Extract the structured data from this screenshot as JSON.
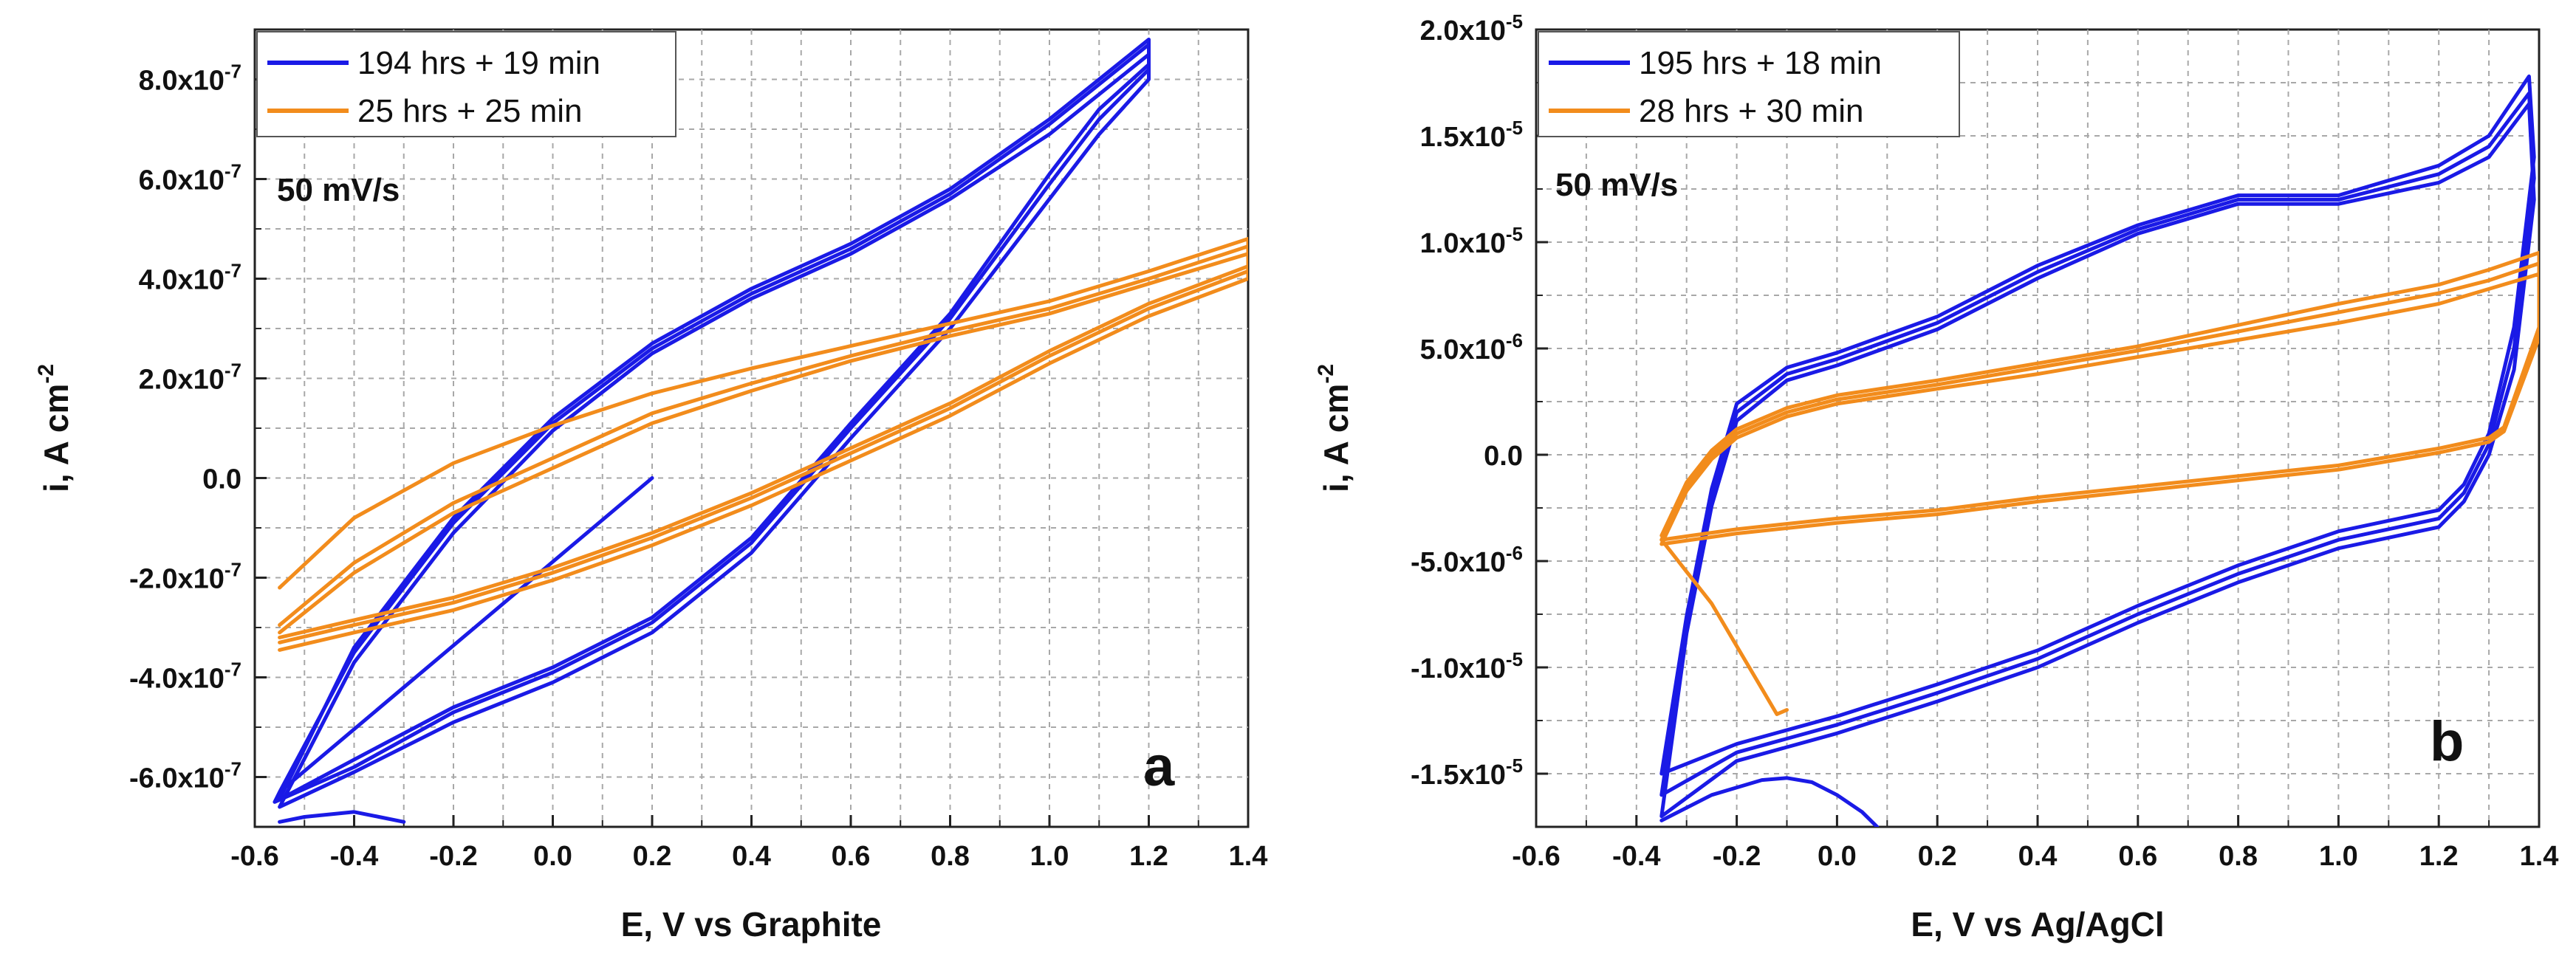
{
  "chart_data": [
    {
      "type": "line",
      "panel_label": "a",
      "annotation": "50 mV/s",
      "xlabel": "E, V vs Graphite",
      "ylabel": "i, A cm-2",
      "ylabel_main": "i, A cm",
      "ylabel_sup": "-2",
      "xlim": [
        -0.6,
        1.4
      ],
      "ylim": [
        -7e-07,
        9e-07
      ],
      "grid": true,
      "legend_position": "top-left",
      "x_ticks": [
        -0.6,
        -0.4,
        -0.2,
        0.0,
        0.2,
        0.4,
        0.6,
        0.8,
        1.0,
        1.2,
        1.4
      ],
      "x_tick_labels": [
        "-0.6",
        "-0.4",
        "-0.2",
        "0.0",
        "0.2",
        "0.4",
        "0.6",
        "0.8",
        "1.0",
        "1.2",
        "1.4"
      ],
      "y_ticks": [
        -6e-07,
        -4e-07,
        -2e-07,
        0.0,
        2e-07,
        4e-07,
        6e-07,
        8e-07
      ],
      "y_tick_labels": [
        {
          "base": "-6.0x10",
          "exp": "-7",
          "plain": ""
        },
        {
          "base": "-4.0x10",
          "exp": "-7",
          "plain": ""
        },
        {
          "base": "-2.0x10",
          "exp": "-7",
          "plain": ""
        },
        {
          "base": "",
          "exp": "",
          "plain": "0.0"
        },
        {
          "base": "2.0x10",
          "exp": "-7",
          "plain": ""
        },
        {
          "base": "4.0x10",
          "exp": "-7",
          "plain": ""
        },
        {
          "base": "6.0x10",
          "exp": "-7",
          "plain": ""
        },
        {
          "base": "8.0x10",
          "exp": "-7",
          "plain": ""
        }
      ],
      "series": [
        {
          "name": "194 hrs + 19 min",
          "color": "#1a1ae6",
          "cycles": [
            {
              "x": [
                0.2,
                -0.55,
                -0.56,
                -0.4,
                -0.2,
                0.0,
                0.2,
                0.4,
                0.6,
                0.8,
                1.0,
                1.1,
                1.2,
                1.2,
                1.0,
                0.8,
                0.6,
                0.4,
                0.2,
                0.0,
                -0.2,
                -0.4,
                -0.55
              ],
              "y": [
                0.0,
                -6.3e-07,
                -6.5e-07,
                -5.8e-07,
                -4.7e-07,
                -3.9e-07,
                -2.9e-07,
                -1.3e-07,
                1e-07,
                3.2e-07,
                5.9e-07,
                7.2e-07,
                8.2e-07,
                8.7e-07,
                7.1e-07,
                5.7e-07,
                4.6e-07,
                3.7e-07,
                2.6e-07,
                1.1e-07,
                -9e-08,
                -3.5e-07,
                -6.3e-07
              ]
            },
            {
              "x": [
                -0.55,
                -0.4,
                -0.2,
                0.0,
                0.2,
                0.4,
                0.6,
                0.8,
                1.0,
                1.1,
                1.2,
                1.2,
                1.0,
                0.8,
                0.6,
                0.4,
                0.2,
                0.0,
                -0.2,
                -0.4,
                -0.55
              ],
              "y": [
                -6.6e-07,
                -5.9e-07,
                -4.9e-07,
                -4.1e-07,
                -3.1e-07,
                -1.5e-07,
                8e-08,
                3e-07,
                5.6e-07,
                6.9e-07,
                8e-07,
                8.5e-07,
                6.9e-07,
                5.6e-07,
                4.5e-07,
                3.6e-07,
                2.5e-07,
                9.5e-08,
                -1.1e-07,
                -3.7e-07,
                -6.6e-07
              ]
            },
            {
              "x": [
                -0.55,
                -0.4,
                -0.2,
                0.0,
                0.2,
                0.4,
                0.6,
                0.8,
                1.0,
                1.1,
                1.2,
                1.2,
                1.0,
                0.8,
                0.6,
                0.4,
                0.2,
                0.0,
                -0.2,
                -0.4,
                -0.55
              ],
              "y": [
                -6.45e-07,
                -5.65e-07,
                -4.6e-07,
                -3.8e-07,
                -2.8e-07,
                -1.2e-07,
                1.1e-07,
                3.3e-07,
                6.1e-07,
                7.4e-07,
                8.3e-07,
                8.8e-07,
                7.2e-07,
                5.8e-07,
                4.7e-07,
                3.8e-07,
                2.7e-07,
                1.2e-07,
                -8e-08,
                -3.4e-07,
                -6.45e-07
              ]
            },
            {
              "x": [
                -0.55,
                -0.5,
                -0.45,
                -0.4,
                -0.35,
                -0.3
              ],
              "y": [
                -6.9e-07,
                -6.8e-07,
                -6.75e-07,
                -6.7e-07,
                -6.8e-07,
                -6.9e-07
              ]
            }
          ]
        },
        {
          "name": "25 hrs + 25 min",
          "color": "#f28c1c",
          "cycles": [
            {
              "x": [
                -0.55,
                -0.4,
                -0.2,
                0.0,
                0.2,
                0.4,
                0.6,
                0.8,
                1.0,
                1.2,
                1.4,
                1.4,
                1.2,
                1.0,
                0.8,
                0.6,
                0.4,
                0.2,
                0.0,
                -0.2,
                -0.4,
                -0.55
              ],
              "y": [
                -3.3e-07,
                -2.95e-07,
                -2.5e-07,
                -1.9e-07,
                -1.2e-07,
                -4e-08,
                5e-08,
                1.4e-07,
                2.45e-07,
                3.4e-07,
                4.15e-07,
                4.8e-07,
                4.15e-07,
                3.55e-07,
                3.1e-07,
                2.65e-07,
                2.2e-07,
                1.7e-07,
                1.05e-07,
                3e-08,
                -8e-08,
                -2.2e-07
              ]
            },
            {
              "x": [
                -0.55,
                -0.4,
                -0.2,
                0.0,
                0.2,
                0.4,
                0.6,
                0.8,
                1.0,
                1.2,
                1.4,
                1.4,
                1.2,
                1.0,
                0.8,
                0.6,
                0.4,
                0.2,
                0.0,
                -0.2,
                -0.4,
                -0.55
              ],
              "y": [
                -3.45e-07,
                -3.1e-07,
                -2.65e-07,
                -2.05e-07,
                -1.35e-07,
                -5.5e-08,
                3.5e-08,
                1.25e-07,
                2.3e-07,
                3.25e-07,
                4e-07,
                4.5e-07,
                3.9e-07,
                3.3e-07,
                2.85e-07,
                2.35e-07,
                1.75e-07,
                1.1e-07,
                2e-08,
                -7e-08,
                -1.9e-07,
                -3.1e-07
              ]
            },
            {
              "x": [
                -0.55,
                -0.4,
                -0.2,
                0.0,
                0.2,
                0.4,
                0.6,
                0.8,
                1.0,
                1.2,
                1.4,
                1.4,
                1.2,
                1.0,
                0.8,
                0.6,
                0.4,
                0.2,
                0.0,
                -0.2,
                -0.4,
                -0.55
              ],
              "y": [
                -3.2e-07,
                -2.85e-07,
                -2.4e-07,
                -1.8e-07,
                -1.1e-07,
                -3e-08,
                6e-08,
                1.5e-07,
                2.55e-07,
                3.5e-07,
                4.25e-07,
                4.65e-07,
                4e-07,
                3.4e-07,
                2.95e-07,
                2.45e-07,
                1.9e-07,
                1.3e-07,
                4e-08,
                -5e-08,
                -1.7e-07,
                -2.95e-07
              ]
            }
          ]
        }
      ]
    },
    {
      "type": "line",
      "panel_label": "b",
      "annotation": "50 mV/s",
      "xlabel": "E, V vs Ag/AgCl",
      "ylabel": "i, A cm-2",
      "ylabel_main": "i, A cm",
      "ylabel_sup": "-2",
      "xlim": [
        -0.6,
        1.4
      ],
      "ylim": [
        -1.75e-05,
        2e-05
      ],
      "grid": true,
      "legend_position": "top-left",
      "x_ticks": [
        -0.6,
        -0.4,
        -0.2,
        0.0,
        0.2,
        0.4,
        0.6,
        0.8,
        1.0,
        1.2,
        1.4
      ],
      "x_tick_labels": [
        "-0.6",
        "-0.4",
        "-0.2",
        "0.0",
        "0.2",
        "0.4",
        "0.6",
        "0.8",
        "1.0",
        "1.2",
        "1.4"
      ],
      "y_ticks": [
        -1.5e-05,
        -1e-05,
        -5e-06,
        0.0,
        5e-06,
        1e-05,
        1.5e-05,
        2e-05
      ],
      "y_tick_labels": [
        {
          "base": "-1.5x10",
          "exp": "-5",
          "plain": ""
        },
        {
          "base": "-1.0x10",
          "exp": "-5",
          "plain": ""
        },
        {
          "base": "-5.0x10",
          "exp": "-6",
          "plain": ""
        },
        {
          "base": "",
          "exp": "",
          "plain": "0.0"
        },
        {
          "base": "5.0x10",
          "exp": "-6",
          "plain": ""
        },
        {
          "base": "1.0x10",
          "exp": "-5",
          "plain": ""
        },
        {
          "base": "1.5x10",
          "exp": "-5",
          "plain": ""
        },
        {
          "base": "2.0x10",
          "exp": "-5",
          "plain": ""
        }
      ],
      "series": [
        {
          "name": "195 hrs + 18 min",
          "color": "#1a1ae6",
          "cycles": [
            {
              "x": [
                -0.35,
                -0.3,
                -0.25,
                -0.2,
                -0.1,
                0.0,
                0.2,
                0.4,
                0.6,
                0.8,
                1.0,
                1.2,
                1.3,
                1.38,
                1.39,
                1.35,
                1.3,
                1.25,
                1.2,
                1.1,
                1.0,
                0.8,
                0.6,
                0.4,
                0.2,
                0.0,
                -0.2,
                -0.35
              ],
              "y": [
                -1.6e-05,
                -8e-06,
                -2e-06,
                2e-06,
                3.8e-06,
                4.5e-06,
                6.2e-06,
                8.6e-06,
                1.06e-05,
                1.2e-05,
                1.2e-05,
                1.32e-05,
                1.45e-05,
                1.7e-05,
                1.3e-05,
                5e-06,
                5e-07,
                -1.8e-06,
                -3e-06,
                -3.5e-06,
                -4e-06,
                -5.6e-06,
                -7.5e-06,
                -9.6e-06,
                -1.12e-05,
                -1.27e-05,
                -1.4e-05,
                -1.6e-05
              ]
            },
            {
              "x": [
                -0.35,
                -0.3,
                -0.25,
                -0.2,
                -0.1,
                0.0,
                0.2,
                0.4,
                0.6,
                0.8,
                1.0,
                1.2,
                1.3,
                1.38,
                1.39,
                1.35,
                1.3,
                1.25,
                1.2,
                1.1,
                1.0,
                0.8,
                0.6,
                0.4,
                0.2,
                0.0,
                -0.2,
                -0.35
              ],
              "y": [
                -1.5e-05,
                -7.6e-06,
                -1.6e-06,
                2.4e-06,
                4.1e-06,
                4.8e-06,
                6.5e-06,
                8.9e-06,
                1.08e-05,
                1.22e-05,
                1.22e-05,
                1.36e-05,
                1.5e-05,
                1.78e-05,
                1.4e-05,
                6e-06,
                1e-06,
                -1.4e-06,
                -2.6e-06,
                -3.1e-06,
                -3.6e-06,
                -5.2e-06,
                -7.1e-06,
                -9.2e-06,
                -1.08e-05,
                -1.23e-05,
                -1.36e-05,
                -1.5e-05
              ]
            },
            {
              "x": [
                -0.35,
                -0.3,
                -0.25,
                -0.2,
                -0.1,
                0.0,
                0.2,
                0.4,
                0.6,
                0.8,
                1.0,
                1.2,
                1.3,
                1.38,
                1.39,
                1.35,
                1.3,
                1.25,
                1.2,
                1.1,
                1.0,
                0.8,
                0.6,
                0.4,
                0.2,
                0.0,
                -0.2,
                -0.35
              ],
              "y": [
                -1.7e-05,
                -8.4e-06,
                -2.4e-06,
                1.6e-06,
                3.5e-06,
                4.2e-06,
                5.9e-06,
                8.3e-06,
                1.04e-05,
                1.18e-05,
                1.18e-05,
                1.28e-05,
                1.4e-05,
                1.65e-05,
                1.2e-05,
                4e-06,
                0.0,
                -2.2e-06,
                -3.4e-06,
                -3.9e-06,
                -4.4e-06,
                -6e-06,
                -7.9e-06,
                -1e-05,
                -1.16e-05,
                -1.31e-05,
                -1.44e-05,
                -1.7e-05
              ]
            },
            {
              "x": [
                -0.35,
                -0.25,
                -0.15,
                -0.1,
                -0.05,
                0.0,
                0.05,
                0.08
              ],
              "y": [
                -1.72e-05,
                -1.6e-05,
                -1.53e-05,
                -1.52e-05,
                -1.54e-05,
                -1.6e-05,
                -1.68e-05,
                -1.75e-05
              ]
            }
          ]
        },
        {
          "name": "28 hrs + 30 min",
          "color": "#f28c1c",
          "cycles": [
            {
              "x": [
                -0.35,
                -0.3,
                -0.25,
                -0.2,
                -0.1,
                0.0,
                0.2,
                0.4,
                0.6,
                0.8,
                1.0,
                1.2,
                1.3,
                1.4,
                1.4,
                1.33,
                1.3,
                1.2,
                1.0,
                0.8,
                0.6,
                0.4,
                0.2,
                0.0,
                -0.2,
                -0.35
              ],
              "y": [
                -4e-06,
                -1.5e-06,
                0.0,
                1e-06,
                2e-06,
                2.6e-06,
                3.3e-06,
                4.1e-06,
                4.9e-06,
                5.8e-06,
                6.7e-06,
                7.6e-06,
                8.2e-06,
                9e-06,
                6e-06,
                1.3e-06,
                8e-07,
                3e-07,
                -5e-07,
                -1e-06,
                -1.5e-06,
                -2e-06,
                -2.6e-06,
                -3e-06,
                -3.5e-06,
                -4e-06
              ]
            },
            {
              "x": [
                -0.35,
                -0.3,
                -0.25,
                -0.2,
                -0.1,
                0.0,
                0.2,
                0.4,
                0.6,
                0.8,
                1.0,
                1.2,
                1.3,
                1.4,
                1.4,
                1.33,
                1.3,
                1.2,
                1.0,
                0.8,
                0.6,
                0.4,
                0.2,
                0.0,
                -0.2,
                -0.35
              ],
              "y": [
                -4.2e-06,
                -1.7e-06,
                -2e-07,
                8e-07,
                1.8e-06,
                2.4e-06,
                3.1e-06,
                3.8e-06,
                4.6e-06,
                5.4e-06,
                6.2e-06,
                7.1e-06,
                7.8e-06,
                8.5e-06,
                5.5e-06,
                1.1e-06,
                6e-07,
                1e-07,
                -7e-07,
                -1.2e-06,
                -1.7e-06,
                -2.2e-06,
                -2.8e-06,
                -3.2e-06,
                -3.7e-06,
                -4.2e-06
              ]
            },
            {
              "x": [
                -0.35,
                -0.3,
                -0.25,
                -0.2,
                -0.1,
                0.0,
                0.2,
                0.4,
                0.6,
                0.8,
                1.0,
                1.2,
                1.3,
                1.4,
                1.4
              ],
              "y": [
                -3.8e-06,
                -1.3e-06,
                2e-07,
                1.2e-06,
                2.2e-06,
                2.8e-06,
                3.5e-06,
                4.3e-06,
                5.1e-06,
                6.1e-06,
                7.1e-06,
                8e-06,
                8.7e-06,
                9.5e-06,
                7e-06
              ]
            },
            {
              "x": [
                -0.35,
                -0.3,
                -0.25,
                -0.2,
                -0.15,
                -0.12,
                -0.1
              ],
              "y": [
                -4e-06,
                -5.5e-06,
                -7e-06,
                -9e-06,
                -1.1e-05,
                -1.22e-05,
                -1.2e-05
              ]
            }
          ]
        }
      ]
    }
  ]
}
